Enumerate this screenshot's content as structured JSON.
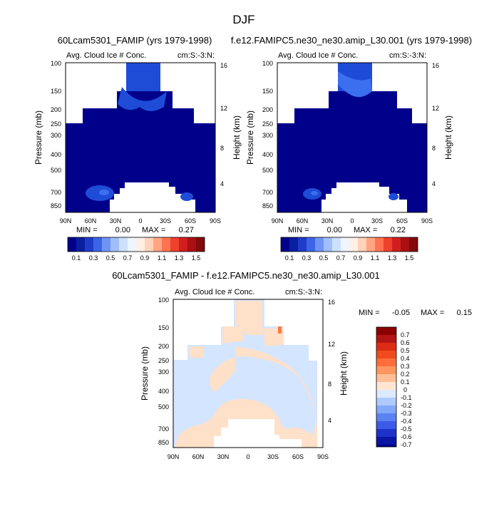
{
  "season": "DJF",
  "colors": {
    "navy": "#00008b",
    "blue1": "#0a33b4",
    "blue2": "#1e4cd7",
    "blue3": "#3c6ef0",
    "pale_blue": "#d4e5ff",
    "peach": "#ffe0c8",
    "orange": "#ff7a40"
  },
  "chart_data": [
    {
      "type": "contour",
      "title": "60Lcam5301_FAMIP (yrs 1979-1998)",
      "variable": "Avg. Cloud Ice # Conc.",
      "units": "cm:S:-3:N:",
      "ylabel": "Pressure (mb)",
      "y2label": "Height (km)",
      "x_ticks": [
        "90N",
        "60N",
        "30N",
        "0",
        "30S",
        "60S",
        "90S"
      ],
      "y_ticks": [
        "100",
        "150",
        "200",
        "250",
        "300",
        "400",
        "500",
        "700",
        "850"
      ],
      "y2_ticks": [
        "16",
        "12",
        "8",
        "4"
      ],
      "stats": {
        "min_label": "MIN =",
        "min": "0.00",
        "max_label": "MAX =",
        "max": "0.27"
      },
      "levels": [
        "0.1",
        "0.3",
        "0.5",
        "0.7",
        "0.9",
        "1.1",
        "1.3",
        "1.5"
      ]
    },
    {
      "type": "contour",
      "title": "f.e12.FAMIPC5.ne30_ne30.amip_L30.001 (yrs 1979-1998)",
      "variable": "Avg. Cloud Ice # Conc.",
      "units": "cm:S:-3:N:",
      "ylabel": "Pressure (mb)",
      "y2label": "Height (km)",
      "x_ticks": [
        "90N",
        "60N",
        "30N",
        "0",
        "30S",
        "60S",
        "90S"
      ],
      "y_ticks": [
        "100",
        "150",
        "200",
        "250",
        "300",
        "400",
        "500",
        "700",
        "850"
      ],
      "y2_ticks": [
        "16",
        "12",
        "8",
        "4"
      ],
      "stats": {
        "min_label": "MIN =",
        "min": "0.00",
        "max_label": "MAX =",
        "max": "0.22"
      },
      "levels": [
        "0.1",
        "0.3",
        "0.5",
        "0.7",
        "0.9",
        "1.1",
        "1.3",
        "1.5"
      ]
    },
    {
      "type": "contour_difference",
      "title": "60Lcam5301_FAMIP - f.e12.FAMIPC5.ne30_ne30.amip_L30.001",
      "variable": "Avg. Cloud Ice # Conc.",
      "units": "cm:S:-3:N:",
      "ylabel": "Pressure (mb)",
      "y2label": "Height (km)",
      "x_ticks": [
        "90N",
        "60N",
        "30N",
        "0",
        "30S",
        "60S",
        "90S"
      ],
      "y_ticks": [
        "100",
        "150",
        "200",
        "250",
        "300",
        "400",
        "500",
        "700",
        "850"
      ],
      "y2_ticks": [
        "16",
        "12",
        "8",
        "4"
      ],
      "stats": {
        "min_label": "MIN =",
        "min": "-0.05",
        "max_label": "MAX =",
        "max": "0.15"
      },
      "levels": [
        "0.7",
        "0.6",
        "0.5",
        "0.4",
        "0.3",
        "0.2",
        "0.1",
        "0",
        "-0.1",
        "-0.2",
        "-0.3",
        "-0.4",
        "-0.5",
        "-0.6",
        "-0.7"
      ]
    }
  ]
}
